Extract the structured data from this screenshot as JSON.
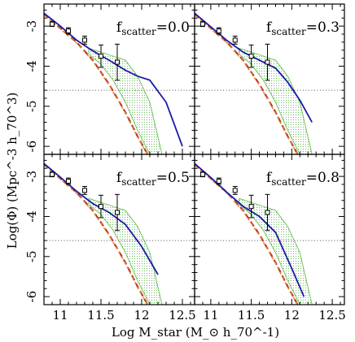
{
  "figure": {
    "xlabel": "Log M_star (M_⊙ h_70^-1)",
    "ylabel": "Log(Φ) (Mpc^-3 h_70^3)",
    "xlim": [
      10.8,
      12.65
    ],
    "ylim": [
      -6.2,
      -2.45
    ],
    "x_ticks": [
      "11",
      "11.5",
      "12",
      "12.5"
    ],
    "y_ticks": [
      "-3",
      "-4",
      "-5",
      "-6"
    ],
    "colors": {
      "frame": "#000000",
      "observed": "#000000",
      "model_dashed_red": "#c0392b",
      "model_dashed_orange": "#d98c2b",
      "model_scatter_blue": "#1a1aa8",
      "model_band_green": "#66bb55",
      "limit_dotted": "#555555"
    }
  },
  "chart_data": [
    {
      "type": "line",
      "panel": "top-left",
      "label_text": "f",
      "label_sub": "scatter",
      "label_value": "=0.0",
      "observed_points": {
        "x": [
          10.9,
          11.1,
          11.3,
          11.5,
          11.7
        ],
        "y": [
          -2.95,
          -3.12,
          -3.35,
          -3.75,
          -3.9
        ],
        "yerr": [
          0.06,
          0.08,
          0.1,
          0.28,
          0.45
        ]
      },
      "series": [
        {
          "style": "dashed-red",
          "x": [
            10.8,
            11.0,
            11.2,
            11.4,
            11.6,
            11.8,
            11.95,
            12.1
          ],
          "y": [
            -2.7,
            -3.05,
            -3.4,
            -3.85,
            -4.45,
            -5.15,
            -5.75,
            -6.3
          ]
        },
        {
          "style": "dashed-orange",
          "x": [
            10.8,
            11.0,
            11.2,
            11.4,
            11.6,
            11.8,
            11.95,
            12.1
          ],
          "y": [
            -2.72,
            -3.07,
            -3.42,
            -3.87,
            -4.47,
            -5.17,
            -5.77,
            -6.3
          ]
        },
        {
          "style": "solid-blue",
          "x": [
            10.8,
            11.0,
            11.2,
            11.4,
            11.6,
            11.8,
            11.95,
            12.1,
            12.3,
            12.5
          ],
          "y": [
            -2.68,
            -3.0,
            -3.35,
            -3.62,
            -3.85,
            -4.1,
            -4.25,
            -4.35,
            -4.9,
            -6.0
          ]
        }
      ],
      "band": {
        "x": [
          11.35,
          11.5,
          11.65,
          11.8,
          11.95,
          12.1,
          12.25
        ],
        "upper": [
          -3.55,
          -3.65,
          -3.75,
          -3.85,
          -4.25,
          -4.9,
          -6.2
        ],
        "lower": [
          -3.7,
          -3.95,
          -4.35,
          -4.9,
          -5.6,
          -6.2,
          -6.2
        ]
      },
      "limit_y": -4.6
    },
    {
      "type": "line",
      "panel": "top-right",
      "label_text": "f",
      "label_sub": "scatter",
      "label_value": "=0.3",
      "observed_points": {
        "x": [
          10.9,
          11.1,
          11.3,
          11.5,
          11.7
        ],
        "y": [
          -2.95,
          -3.12,
          -3.35,
          -3.75,
          -3.9
        ],
        "yerr": [
          0.06,
          0.08,
          0.1,
          0.28,
          0.45
        ]
      },
      "series": [
        {
          "style": "dashed-red",
          "x": [
            10.8,
            11.0,
            11.2,
            11.4,
            11.6,
            11.8,
            11.95,
            12.1
          ],
          "y": [
            -2.7,
            -3.05,
            -3.4,
            -3.85,
            -4.45,
            -5.15,
            -5.75,
            -6.3
          ]
        },
        {
          "style": "dashed-orange",
          "x": [
            10.8,
            11.0,
            11.2,
            11.4,
            11.6,
            11.8,
            11.95,
            12.1
          ],
          "y": [
            -2.72,
            -3.07,
            -3.42,
            -3.87,
            -4.47,
            -5.17,
            -5.77,
            -6.3
          ]
        },
        {
          "style": "solid-blue",
          "x": [
            10.8,
            11.0,
            11.2,
            11.4,
            11.6,
            11.8,
            11.95,
            12.1,
            12.25
          ],
          "y": [
            -2.68,
            -3.02,
            -3.36,
            -3.65,
            -3.85,
            -4.05,
            -4.4,
            -4.85,
            -5.4
          ]
        }
      ],
      "band": {
        "x": [
          11.35,
          11.5,
          11.65,
          11.8,
          11.95,
          12.1,
          12.25
        ],
        "upper": [
          -3.55,
          -3.65,
          -3.75,
          -3.85,
          -4.25,
          -4.9,
          -6.2
        ],
        "lower": [
          -3.7,
          -3.95,
          -4.35,
          -4.9,
          -5.6,
          -6.2,
          -6.2
        ]
      },
      "limit_y": -4.6
    },
    {
      "type": "line",
      "panel": "bottom-left",
      "label_text": "f",
      "label_sub": "scatter",
      "label_value": "=0.5",
      "observed_points": {
        "x": [
          10.9,
          11.1,
          11.3,
          11.5,
          11.7
        ],
        "y": [
          -2.95,
          -3.12,
          -3.35,
          -3.75,
          -3.9
        ],
        "yerr": [
          0.06,
          0.08,
          0.1,
          0.28,
          0.45
        ]
      },
      "series": [
        {
          "style": "dashed-red",
          "x": [
            10.8,
            11.0,
            11.2,
            11.4,
            11.6,
            11.8,
            11.95,
            12.1
          ],
          "y": [
            -2.7,
            -3.05,
            -3.4,
            -3.85,
            -4.45,
            -5.15,
            -5.75,
            -6.3
          ]
        },
        {
          "style": "dashed-orange",
          "x": [
            10.8,
            11.0,
            11.2,
            11.4,
            11.6,
            11.8,
            11.95,
            12.1
          ],
          "y": [
            -2.72,
            -3.07,
            -3.42,
            -3.87,
            -4.47,
            -5.17,
            -5.77,
            -6.3
          ]
        },
        {
          "style": "solid-blue",
          "x": [
            10.8,
            11.0,
            11.2,
            11.4,
            11.6,
            11.8,
            12.0,
            12.2
          ],
          "y": [
            -2.68,
            -3.02,
            -3.37,
            -3.68,
            -3.9,
            -4.2,
            -4.75,
            -5.45
          ]
        }
      ],
      "band": {
        "x": [
          11.35,
          11.5,
          11.65,
          11.8,
          11.95,
          12.1,
          12.25
        ],
        "upper": [
          -3.55,
          -3.65,
          -3.75,
          -3.85,
          -4.25,
          -4.9,
          -6.2
        ],
        "lower": [
          -3.7,
          -3.95,
          -4.35,
          -4.9,
          -5.6,
          -6.2,
          -6.2
        ]
      },
      "limit_y": -4.6
    },
    {
      "type": "line",
      "panel": "bottom-right",
      "label_text": "f",
      "label_sub": "scatter",
      "label_value": "=0.8",
      "observed_points": {
        "x": [
          10.9,
          11.1,
          11.3,
          11.5,
          11.7
        ],
        "y": [
          -2.95,
          -3.12,
          -3.35,
          -3.75,
          -3.9
        ],
        "yerr": [
          0.06,
          0.08,
          0.1,
          0.28,
          0.45
        ]
      },
      "series": [
        {
          "style": "dashed-red",
          "x": [
            10.8,
            11.0,
            11.2,
            11.4,
            11.6,
            11.8,
            11.95,
            12.1
          ],
          "y": [
            -2.7,
            -3.05,
            -3.4,
            -3.85,
            -4.45,
            -5.15,
            -5.75,
            -6.3
          ]
        },
        {
          "style": "dashed-orange",
          "x": [
            10.8,
            11.0,
            11.2,
            11.4,
            11.6,
            11.8,
            11.95,
            12.1
          ],
          "y": [
            -2.72,
            -3.07,
            -3.42,
            -3.87,
            -4.47,
            -5.17,
            -5.77,
            -6.3
          ]
        },
        {
          "style": "solid-blue",
          "x": [
            10.8,
            11.0,
            11.2,
            11.4,
            11.6,
            11.8,
            12.0,
            12.15
          ],
          "y": [
            -2.68,
            -3.03,
            -3.4,
            -3.75,
            -4.0,
            -4.4,
            -5.3,
            -6.0
          ]
        }
      ],
      "band": {
        "x": [
          11.35,
          11.5,
          11.65,
          11.8,
          11.95,
          12.1,
          12.25
        ],
        "upper": [
          -3.55,
          -3.65,
          -3.75,
          -3.85,
          -4.25,
          -4.9,
          -6.2
        ],
        "lower": [
          -3.7,
          -3.95,
          -4.35,
          -4.9,
          -5.6,
          -6.2,
          -6.2
        ]
      },
      "limit_y": -4.6
    }
  ]
}
